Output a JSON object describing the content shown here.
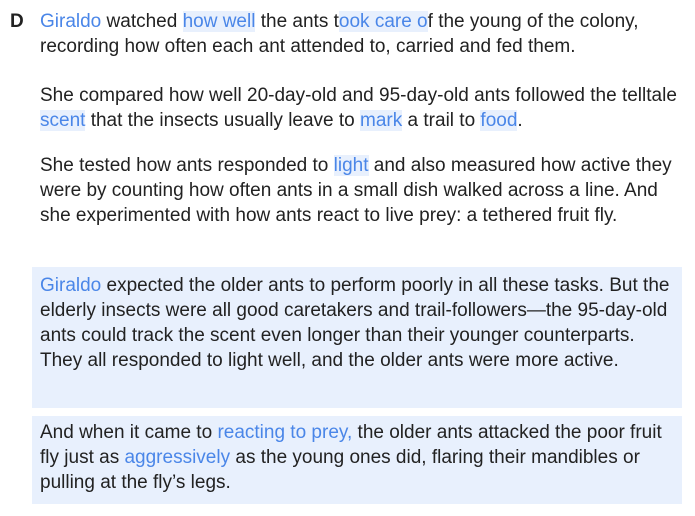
{
  "section_letter": "D",
  "colors": {
    "text": "#222222",
    "link": "#4a86e8",
    "highlight_bg": "#e8f0fd"
  },
  "p1": {
    "s1": "Giraldo",
    "s2": " watched ",
    "s3": "how well",
    "s4": " the ants t",
    "s5": "ook care o",
    "s6": "f the young of the colony, recording how often each ant attended to, carried and fed them."
  },
  "p2": {
    "s1": "She compared how well 20-day-old and 95-day-old ants followed the telltale ",
    "s2": "scent",
    "s3": " that the insects usually leave to ",
    "s4": "mark",
    "s5": " a trail to ",
    "s6": "food",
    "s7": "."
  },
  "p3": {
    "s1": "She tested how ants responded to ",
    "s2": "light",
    "s3": " and also measured how active they were by counting how often ants in a small dish walked across a line. And she experimented with how ants react to live prey: a tethered fruit fly."
  },
  "p4": {
    "s1": "Giraldo",
    "s2": " expected the older ants to perform poorly in all these tasks. But the elderly insects were all good caretakers and trail-followers—the 95-day-old ants could track the scent even longer than their younger counterparts. They all responded to light well, and the older ants were more active."
  },
  "p5": {
    "s1": "And when it came to ",
    "s2": "reacting to prey,",
    "s3": " the older ants attacked the poor fruit fly just as ",
    "s4": "aggressively",
    "s5": " as the young ones did, flaring their mandibles or pulling at the fly’s legs."
  }
}
